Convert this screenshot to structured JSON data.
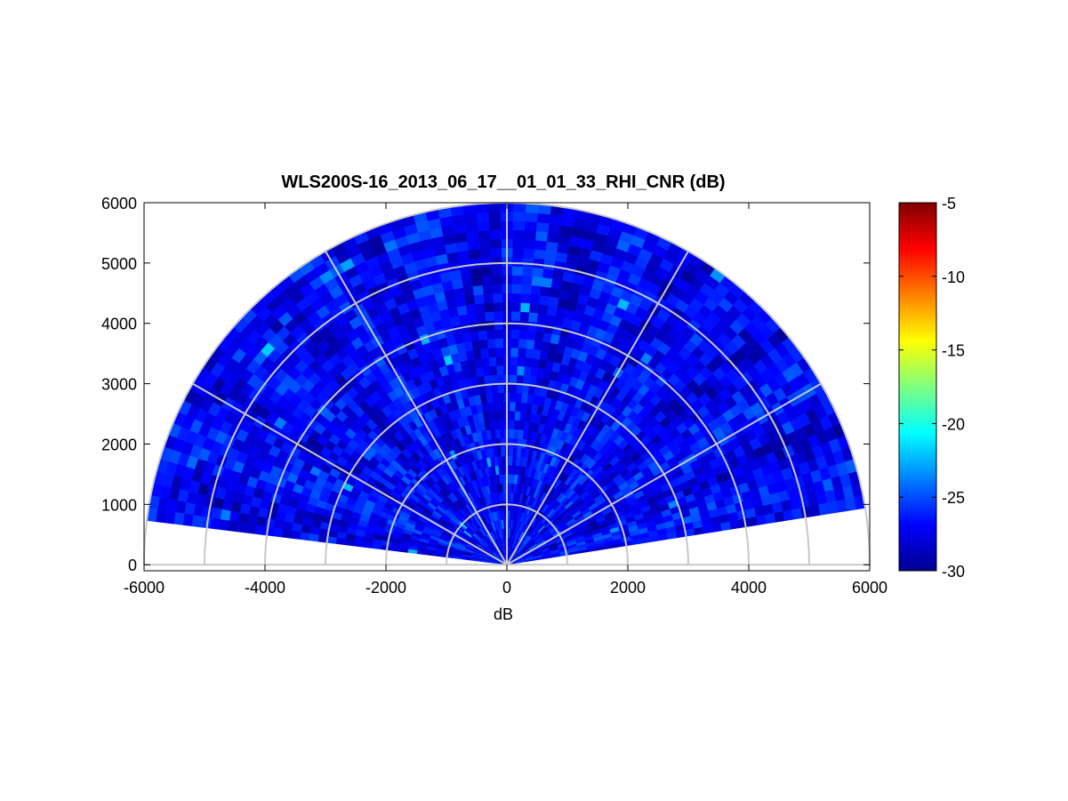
{
  "chart_data": {
    "type": "heatmap",
    "subtype": "polar-rhi",
    "title": "WLS200S-16_2013_06_17__01_01_33_RHI_CNR (dB)",
    "xlabel": "dB",
    "ylabel": "",
    "xlim": [
      -6000,
      6000
    ],
    "ylim": [
      -100,
      6000
    ],
    "x_ticks": [
      -6000,
      -4000,
      -2000,
      0,
      2000,
      4000,
      6000
    ],
    "x_tick_labels": [
      "-6000",
      "-4000",
      "-2000",
      "0",
      "2000",
      "4000",
      "6000"
    ],
    "y_ticks": [
      0,
      1000,
      2000,
      3000,
      4000,
      5000,
      6000
    ],
    "y_tick_labels": [
      "0",
      "1000",
      "2000",
      "3000",
      "4000",
      "5000",
      "6000"
    ],
    "polar_range_rings": [
      1000,
      2000,
      3000,
      4000,
      5000,
      6000
    ],
    "polar_spokes_deg": [
      0,
      30,
      60,
      90,
      120,
      150,
      180
    ],
    "scan": {
      "elevation_start_deg": 9,
      "elevation_end_deg": 173,
      "max_range": 6000,
      "background_cnr_db": -27
    },
    "colorbar": {
      "colormap": "jet",
      "min": -30,
      "max": -5,
      "ticks": [
        -5,
        -10,
        -15,
        -20,
        -25,
        -30
      ],
      "tick_labels": [
        "-5",
        "-10",
        "-15",
        "-20",
        "-25",
        "-30"
      ]
    },
    "grid": true
  }
}
